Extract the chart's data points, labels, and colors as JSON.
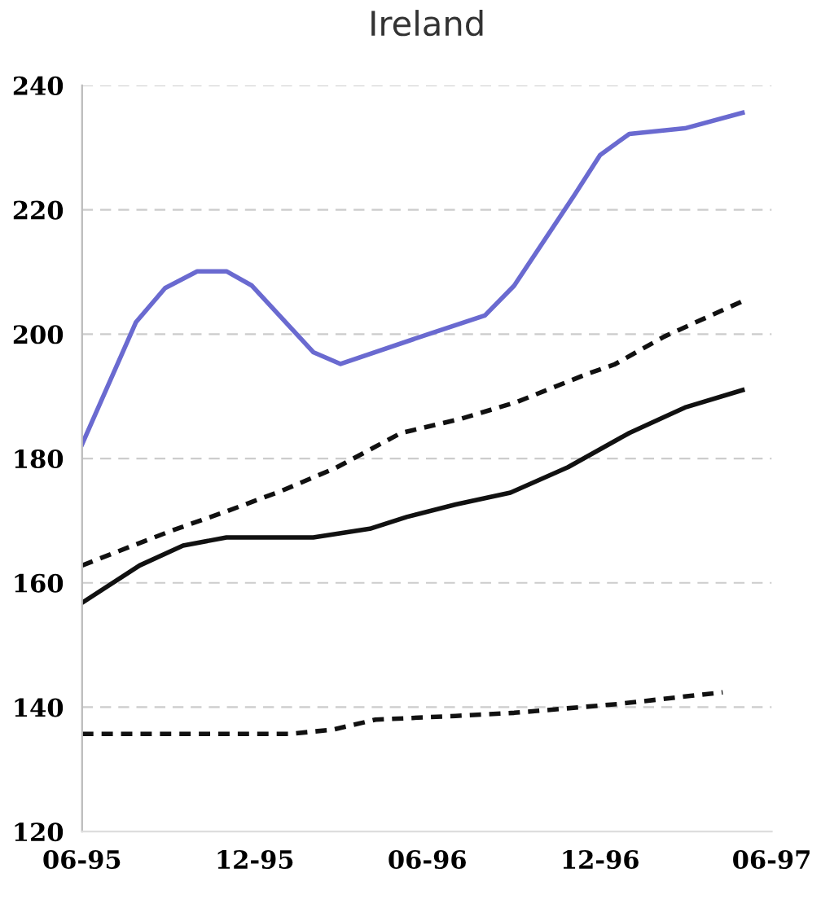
{
  "chart_data": {
    "type": "line",
    "title": "Ireland",
    "xlim": [
      "1995-06-01",
      "1997-06-01"
    ],
    "xticks": [
      {
        "value": "1995-06",
        "label": "06-95"
      },
      {
        "value": "1995-12",
        "label": "12-95"
      },
      {
        "value": "1996-06",
        "label": "06-96"
      },
      {
        "value": "1996-12",
        "label": "12-96"
      },
      {
        "value": "1997-06",
        "label": "06-97"
      }
    ],
    "ylim": [
      120,
      240
    ],
    "yticks": [
      120,
      140,
      160,
      180,
      200,
      220,
      240
    ],
    "grid": "y",
    "marker": "none",
    "series": [
      {
        "color": "#6a6ad0",
        "line_style": "solid",
        "x": [
          "1995-06-01",
          "1995-07-28",
          "1995-08-28",
          "1995-10-01",
          "1995-11-01",
          "1995-11-28",
          "1996-02-01",
          "1996-03-01",
          "1996-06-04",
          "1996-08-01",
          "1996-09-01",
          "1996-11-04",
          "1996-12-01",
          "1997-01-01",
          "1997-03-01",
          "1997-05-01"
        ],
        "values": [
          182.3,
          201.9,
          207.4,
          210.1,
          210.1,
          207.8,
          197.1,
          195.2,
          200.1,
          203,
          207.8,
          222.4,
          228.8,
          232.2,
          233.1,
          235.6
        ]
      },
      {
        "color": "#111111",
        "line_style": "dashed",
        "x": [
          "1995-06-01",
          "1995-07-25",
          "1995-09-04",
          "1995-11-01",
          "1995-12-28",
          "1996-02-25",
          "1996-05-04",
          "1996-07-07",
          "1996-09-04",
          "1996-11-19",
          "1996-12-16",
          "1997-02-07",
          "1997-05-01"
        ],
        "values": [
          162.8,
          166,
          168.4,
          171.5,
          174.7,
          178.5,
          184.1,
          186.4,
          189.1,
          193.7,
          195.1,
          199.6,
          205.3
        ]
      },
      {
        "color": "#111111",
        "line_style": "solid",
        "x": [
          "1995-06-01",
          "1995-08-01",
          "1995-09-16",
          "1995-11-01",
          "1996-02-01",
          "1996-04-01",
          "1996-05-10",
          "1996-07-01",
          "1996-08-28",
          "1996-10-28",
          "1997-01-01",
          "1997-03-01",
          "1997-05-01"
        ],
        "values": [
          156.8,
          162.8,
          166,
          167.3,
          167.3,
          168.7,
          170.6,
          172.6,
          174.5,
          178.6,
          184.1,
          188.2,
          191
        ]
      },
      {
        "color": "#111111",
        "line_style": "dashed",
        "x": [
          "1995-06-01",
          "1995-08-25",
          "1996-01-07",
          "1996-02-22",
          "1996-04-07",
          "1996-07-01",
          "1996-09-01",
          "1996-12-19",
          "1997-04-10"
        ],
        "values": [
          135.7,
          135.7,
          135.7,
          136.4,
          138,
          138.6,
          139.1,
          140.5,
          142.4
        ]
      }
    ]
  }
}
